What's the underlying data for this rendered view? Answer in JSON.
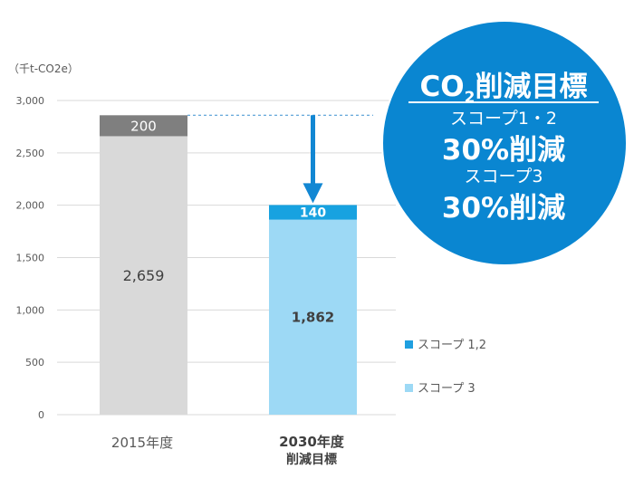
{
  "chart_data": {
    "type": "bar",
    "stacked": true,
    "unit_label": "（千t-CO2e）",
    "ylim": [
      0,
      3000
    ],
    "yticks": [
      0,
      500,
      1000,
      1500,
      2000,
      2500,
      3000
    ],
    "ytick_labels": [
      "0",
      "500",
      "1,000",
      "1,500",
      "2,000",
      "2,500",
      "3,000"
    ],
    "categories": [
      {
        "label": "2015年度",
        "sublabel": ""
      },
      {
        "label": "2030年度",
        "sublabel": "削減目標"
      }
    ],
    "series": [
      {
        "name": "スコープ 3",
        "values": [
          2659,
          1862
        ],
        "value_labels": [
          "2,659",
          "1,862"
        ]
      },
      {
        "name": "スコープ 1,2",
        "values": [
          200,
          140
        ],
        "value_labels": [
          "200",
          "140"
        ]
      }
    ],
    "colors": {
      "2015_scope3": "#d9d9d9",
      "2015_scope12": "#7f7f7f",
      "2030_scope3": "#9dd9f5",
      "2030_scope12": "#17a2e0",
      "legend_scope12": "#1f9fe0",
      "legend_scope3": "#9dd9f5",
      "arrow": "#1287d3",
      "circle": "#0a86d1",
      "grid": "#d9d9d9"
    },
    "legend": {
      "position": "right",
      "items": [
        {
          "name": "スコープ 1,2",
          "color": "#1f9fe0"
        },
        {
          "name": "スコープ 3",
          "color": "#9dd9f5"
        }
      ]
    },
    "target_badge": {
      "title_co": "CO",
      "title_sub": "2",
      "title_rest": "削減目標",
      "line1": "スコープ1・2",
      "line2": "30%削減",
      "line3": "スコープ3",
      "line4": "30%削減"
    }
  }
}
